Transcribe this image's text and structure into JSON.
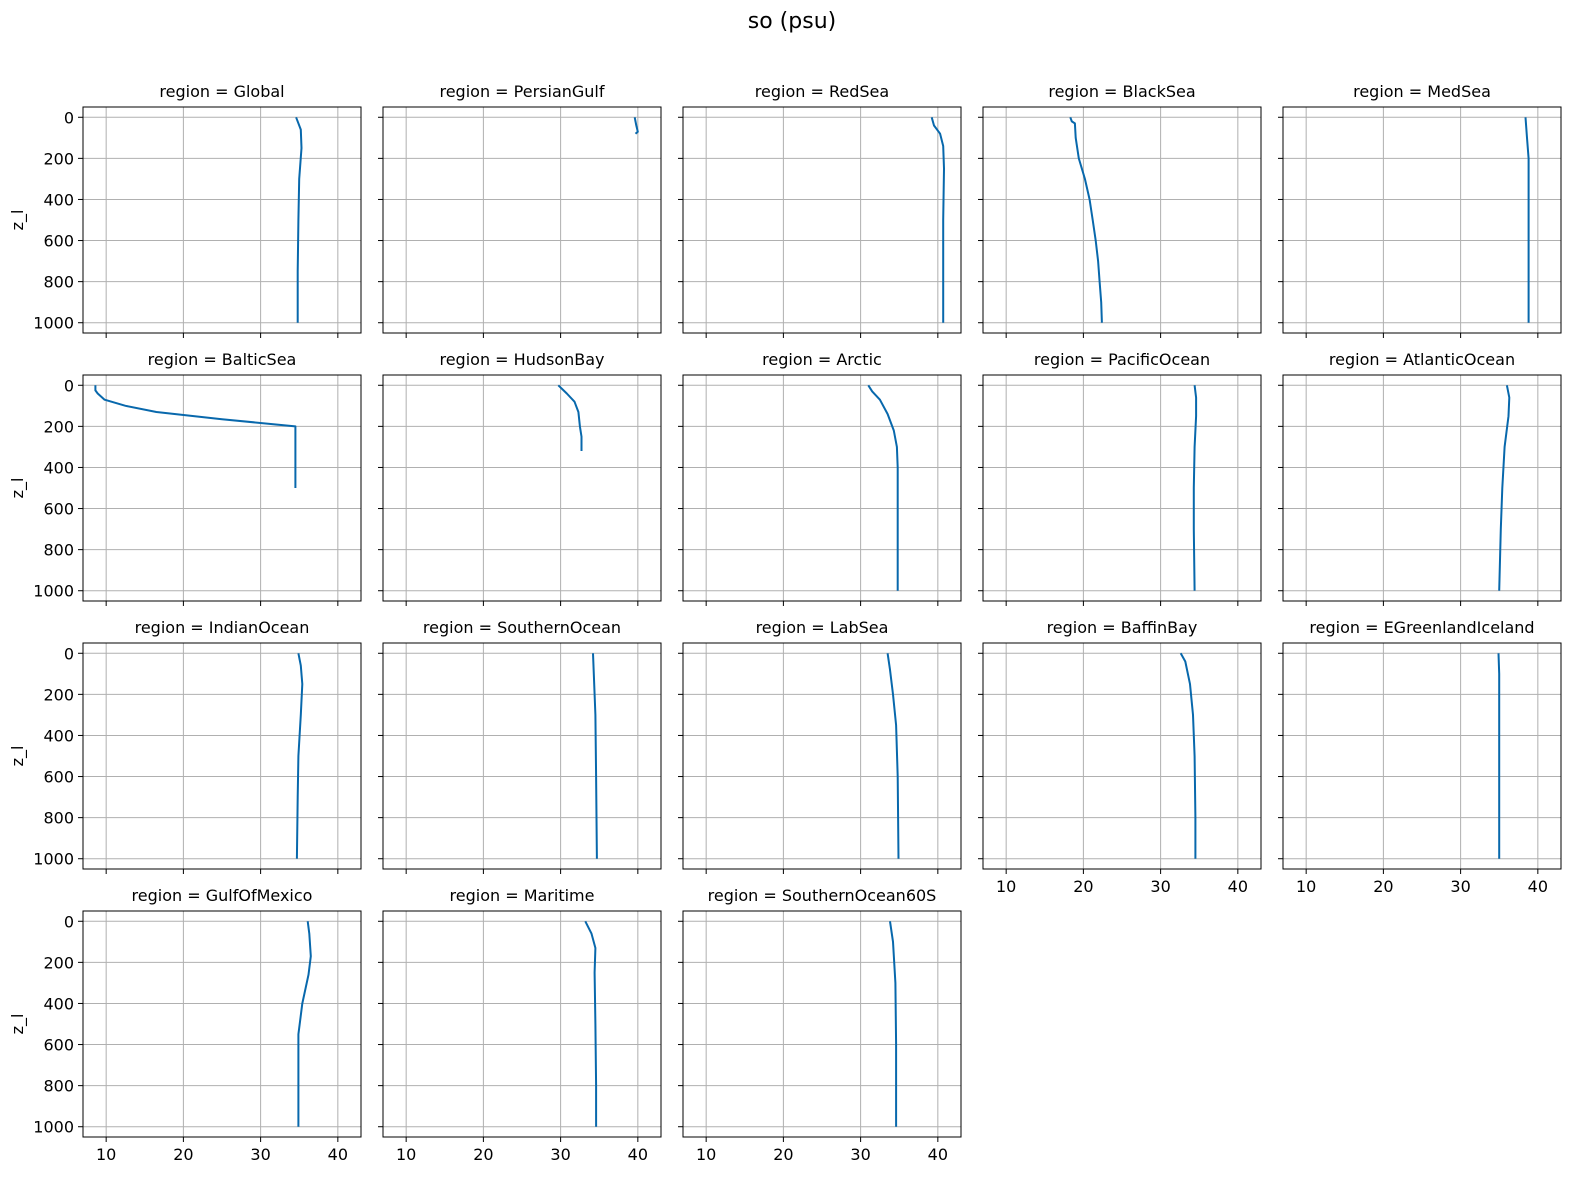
{
  "suptitle": "so (psu)",
  "colors": {
    "line": "#0868ac",
    "grid": "#b0b0b0",
    "axes": "#000000"
  },
  "chart_data": {
    "type": "line",
    "layout": {
      "rows": 4,
      "cols": 5
    },
    "panel_title_prefix": "region = ",
    "ylabel": "z_l",
    "xlabel": "",
    "xlim": [
      7,
      43
    ],
    "ylim": [
      1050,
      -50
    ],
    "xticks": [
      10,
      20,
      30,
      40
    ],
    "yticks": [
      0,
      200,
      400,
      600,
      800,
      1000
    ],
    "grid": true,
    "panels": [
      {
        "region": "Global",
        "points": [
          [
            34.6,
            0
          ],
          [
            35.2,
            60
          ],
          [
            35.3,
            150
          ],
          [
            35.0,
            300
          ],
          [
            34.9,
            500
          ],
          [
            34.8,
            750
          ],
          [
            34.8,
            1000
          ]
        ]
      },
      {
        "region": "PersianGulf",
        "points": [
          [
            39.6,
            0
          ],
          [
            39.8,
            40
          ],
          [
            40.0,
            70
          ],
          [
            39.7,
            80
          ]
        ]
      },
      {
        "region": "RedSea",
        "points": [
          [
            39.2,
            0
          ],
          [
            39.5,
            40
          ],
          [
            40.3,
            80
          ],
          [
            40.7,
            140
          ],
          [
            40.8,
            250
          ],
          [
            40.7,
            500
          ],
          [
            40.7,
            1000
          ]
        ]
      },
      {
        "region": "BlackSea",
        "points": [
          [
            18.3,
            0
          ],
          [
            18.5,
            20
          ],
          [
            18.9,
            30
          ],
          [
            19.0,
            100
          ],
          [
            19.4,
            200
          ],
          [
            20.2,
            300
          ],
          [
            20.8,
            400
          ],
          [
            21.2,
            500
          ],
          [
            21.6,
            600
          ],
          [
            21.9,
            700
          ],
          [
            22.1,
            800
          ],
          [
            22.3,
            900
          ],
          [
            22.4,
            1000
          ]
        ]
      },
      {
        "region": "MedSea",
        "points": [
          [
            38.4,
            0
          ],
          [
            38.6,
            100
          ],
          [
            38.8,
            200
          ],
          [
            38.8,
            400
          ],
          [
            38.8,
            700
          ],
          [
            38.8,
            1000
          ]
        ]
      },
      {
        "region": "BalticSea",
        "points": [
          [
            8.6,
            0
          ],
          [
            8.6,
            25
          ],
          [
            8.9,
            40
          ],
          [
            9.8,
            70
          ],
          [
            12.5,
            100
          ],
          [
            16.5,
            130
          ],
          [
            25.0,
            165
          ],
          [
            34.5,
            200
          ],
          [
            34.5,
            300
          ],
          [
            34.5,
            500
          ]
        ]
      },
      {
        "region": "HudsonBay",
        "points": [
          [
            29.7,
            0
          ],
          [
            30.8,
            40
          ],
          [
            31.8,
            80
          ],
          [
            32.3,
            130
          ],
          [
            32.5,
            200
          ],
          [
            32.7,
            250
          ],
          [
            32.7,
            320
          ]
        ]
      },
      {
        "region": "Arctic",
        "points": [
          [
            31.0,
            0
          ],
          [
            31.5,
            30
          ],
          [
            32.5,
            70
          ],
          [
            33.5,
            140
          ],
          [
            34.3,
            220
          ],
          [
            34.7,
            300
          ],
          [
            34.8,
            400
          ],
          [
            34.8,
            600
          ],
          [
            34.8,
            800
          ],
          [
            34.8,
            1000
          ]
        ]
      },
      {
        "region": "PacificOcean",
        "points": [
          [
            34.4,
            0
          ],
          [
            34.6,
            60
          ],
          [
            34.6,
            150
          ],
          [
            34.4,
            300
          ],
          [
            34.3,
            500
          ],
          [
            34.3,
            700
          ],
          [
            34.4,
            1000
          ]
        ]
      },
      {
        "region": "AtlanticOcean",
        "points": [
          [
            36.0,
            0
          ],
          [
            36.3,
            60
          ],
          [
            36.2,
            150
          ],
          [
            35.7,
            300
          ],
          [
            35.4,
            500
          ],
          [
            35.2,
            700
          ],
          [
            35.0,
            1000
          ]
        ]
      },
      {
        "region": "IndianOcean",
        "points": [
          [
            34.9,
            0
          ],
          [
            35.2,
            60
          ],
          [
            35.4,
            150
          ],
          [
            35.2,
            300
          ],
          [
            34.9,
            500
          ],
          [
            34.8,
            700
          ],
          [
            34.7,
            1000
          ]
        ]
      },
      {
        "region": "SouthernOcean",
        "points": [
          [
            34.2,
            0
          ],
          [
            34.3,
            100
          ],
          [
            34.5,
            300
          ],
          [
            34.6,
            600
          ],
          [
            34.7,
            1000
          ]
        ]
      },
      {
        "region": "LabSea",
        "points": [
          [
            33.5,
            0
          ],
          [
            33.8,
            80
          ],
          [
            34.2,
            200
          ],
          [
            34.6,
            350
          ],
          [
            34.8,
            600
          ],
          [
            34.9,
            1000
          ]
        ]
      },
      {
        "region": "BaffinBay",
        "points": [
          [
            32.6,
            0
          ],
          [
            33.2,
            40
          ],
          [
            33.8,
            150
          ],
          [
            34.2,
            300
          ],
          [
            34.4,
            500
          ],
          [
            34.5,
            800
          ],
          [
            34.5,
            1000
          ]
        ]
      },
      {
        "region": "EGreenlandIceland",
        "points": [
          [
            34.9,
            0
          ],
          [
            35.0,
            100
          ],
          [
            35.0,
            300
          ],
          [
            35.0,
            600
          ],
          [
            35.0,
            1000
          ]
        ]
      },
      {
        "region": "GulfOfMexico",
        "points": [
          [
            36.1,
            0
          ],
          [
            36.3,
            60
          ],
          [
            36.5,
            170
          ],
          [
            36.2,
            260
          ],
          [
            35.4,
            400
          ],
          [
            34.9,
            550
          ],
          [
            34.9,
            800
          ],
          [
            34.9,
            1000
          ]
        ]
      },
      {
        "region": "Maritime",
        "points": [
          [
            33.2,
            0
          ],
          [
            34.0,
            60
          ],
          [
            34.5,
            130
          ],
          [
            34.4,
            250
          ],
          [
            34.5,
            500
          ],
          [
            34.6,
            800
          ],
          [
            34.6,
            1000
          ]
        ]
      },
      {
        "region": "SouthernOcean60S",
        "points": [
          [
            33.8,
            0
          ],
          [
            34.2,
            100
          ],
          [
            34.5,
            300
          ],
          [
            34.6,
            600
          ],
          [
            34.6,
            1000
          ]
        ]
      }
    ]
  }
}
